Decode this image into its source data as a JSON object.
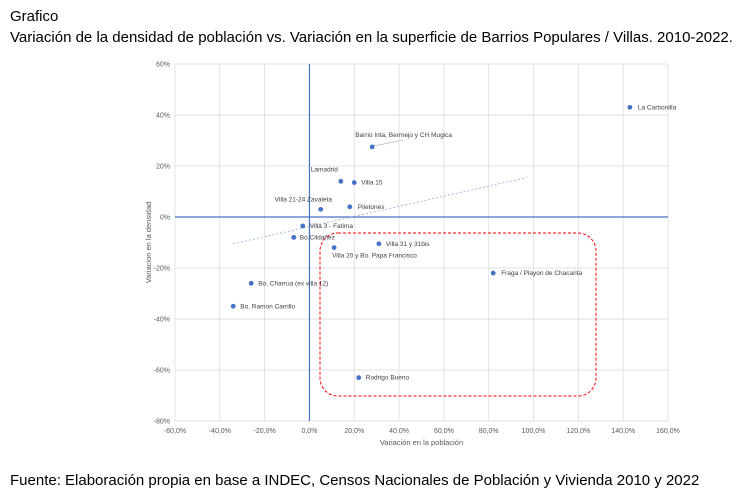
{
  "header": {
    "label": "Grafico",
    "title": "Variación de la densidad de población vs. Variación en la superficie de Barrios Populares / Villas. 2010-2022."
  },
  "source": "Fuente: Elaboración propia en base a INDEC, Censos Nacionales de Población y Vivienda 2010 y 2022",
  "chart_data": {
    "type": "scatter",
    "title": "",
    "xlabel": "Variación en la población",
    "ylabel": "Variacion en la densidad",
    "xlim": [
      -0.6,
      1.6
    ],
    "ylim": [
      -0.8,
      0.6
    ],
    "x_ticks": [
      -0.6,
      -0.4,
      -0.2,
      0.0,
      0.2,
      0.4,
      0.6,
      0.8,
      1.0,
      1.2,
      1.4,
      1.6
    ],
    "x_tick_labels": [
      "-60,0%",
      "-40,0%",
      "-20,0%",
      "0,0%",
      "20,0%",
      "40,0%",
      "60,0%",
      "80,0%",
      "100,0%",
      "120,0%",
      "140,0%",
      "160,0%"
    ],
    "y_ticks": [
      -0.8,
      -0.6,
      -0.4,
      -0.2,
      0.0,
      0.2,
      0.4,
      0.6
    ],
    "y_tick_labels": [
      "-80%",
      "-60%",
      "-40%",
      "-20%",
      "0%",
      "20%",
      "40%",
      "60%"
    ],
    "grid": true,
    "marker_color": "#4472C4",
    "axis_line_color": "#4472C4",
    "highlight_color": "#FF0000",
    "points": [
      {
        "label": "La Carbonilla",
        "x": 1.43,
        "y": 0.43
      },
      {
        "label": "Barrio Inta, Bermejo y CH Mugica",
        "x": 0.28,
        "y": 0.275
      },
      {
        "label": "Lamadrid",
        "x": 0.14,
        "y": 0.14
      },
      {
        "label": "Villa 15",
        "x": 0.2,
        "y": 0.135
      },
      {
        "label": "Villa 21-24 Zavaleta",
        "x": 0.05,
        "y": 0.03
      },
      {
        "label": "Piletones",
        "x": 0.18,
        "y": 0.04
      },
      {
        "label": "Villa 3 - Fatima",
        "x": -0.03,
        "y": -0.035
      },
      {
        "label": "Bo.Cildañez",
        "x": -0.07,
        "y": -0.08
      },
      {
        "label": "Villa 31 y 31bis",
        "x": 0.31,
        "y": -0.105
      },
      {
        "label": "Villa 20 y Bo. Papa Francisco",
        "x": 0.11,
        "y": -0.12
      },
      {
        "label": "Fraga / Playon de Chacarita",
        "x": 0.82,
        "y": -0.22
      },
      {
        "label": "Bo. Charrua (ex villa 12)",
        "x": -0.26,
        "y": -0.26
      },
      {
        "label": "Bo. Ramon Carrillo",
        "x": -0.34,
        "y": -0.35
      },
      {
        "label": "Rodrigo Bueno",
        "x": 0.22,
        "y": -0.63
      }
    ],
    "trendline": {
      "x": [
        -0.34,
        0.97
      ],
      "y": [
        -0.105,
        0.155
      ]
    }
  }
}
